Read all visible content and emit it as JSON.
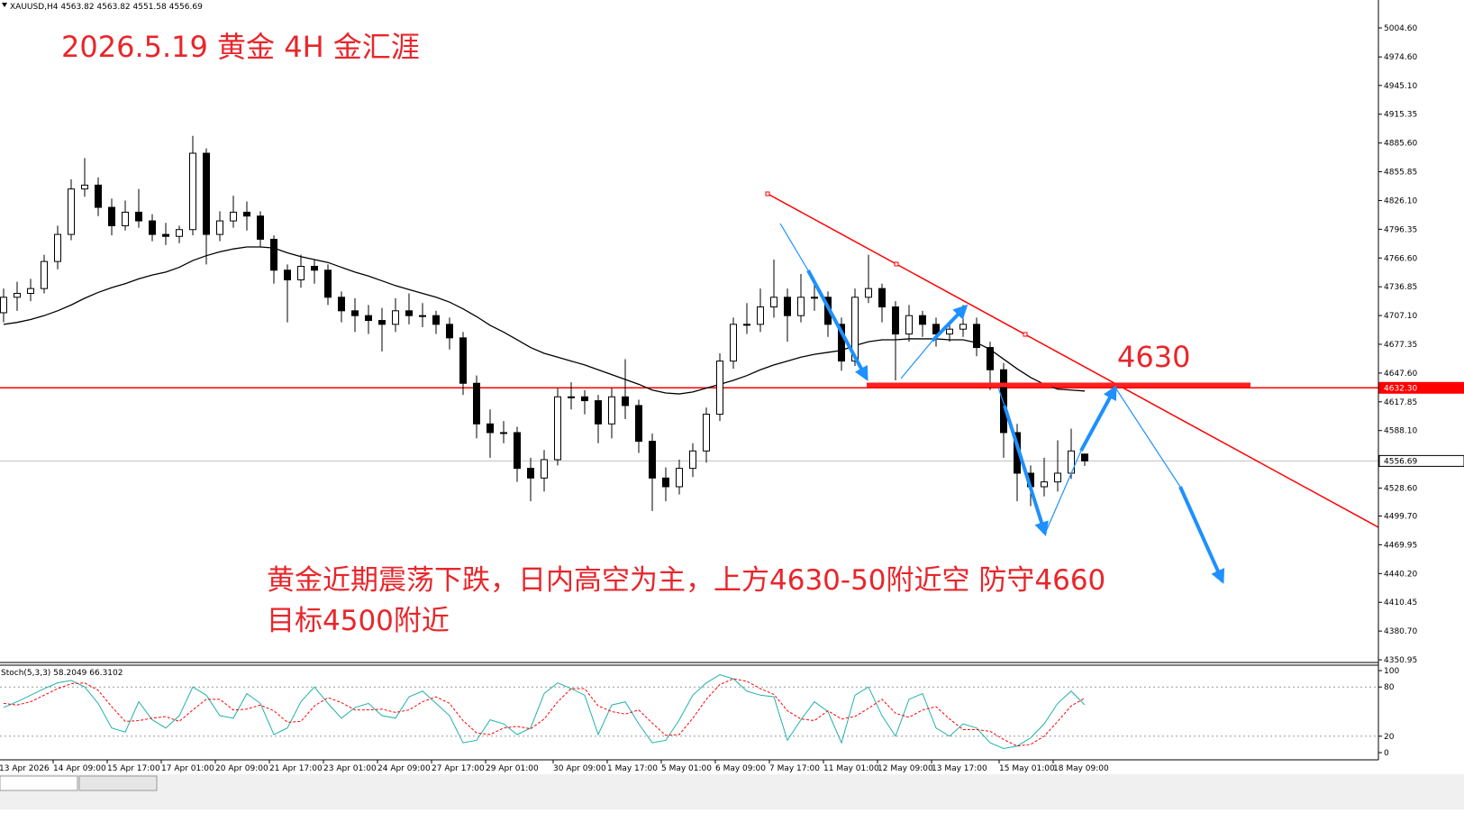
{
  "chart_data": {
    "type": "candlestick",
    "header": "XAUUSD,H4  4563.82 4563.82 4551.58 4556.69",
    "title": "2026.5.19  黄金 4H 金汇涯",
    "level_label": "4630",
    "note": [
      "黄金近期震荡下跌，日内高空为主，上方4630-50附近空 防守4660",
      "目标4500附近"
    ],
    "annotation_color": "#e8262b",
    "up_color": "#ffffff",
    "down_color": "#000000",
    "categories": [
      "13 Apr 2026",
      null,
      null,
      null,
      "14 Apr 09:00",
      null,
      null,
      null,
      "15 Apr 17:00",
      null,
      null,
      null,
      "17 Apr 01:00",
      null,
      null,
      null,
      "20 Apr 09:00",
      null,
      null,
      null,
      "21 Apr 17:00",
      null,
      null,
      null,
      "23 Apr 01:00",
      null,
      null,
      null,
      "24 Apr 09:00",
      null,
      null,
      null,
      "27 Apr 17:00",
      null,
      null,
      null,
      "29 Apr 01:00",
      null,
      null,
      null,
      null,
      "30 Apr 09:00",
      null,
      null,
      null,
      "1 May 17:00",
      null,
      null,
      null,
      "5 May 01:00",
      null,
      null,
      null,
      "6 May 09:00",
      null,
      null,
      null,
      "7 May 17:00",
      null,
      null,
      null,
      "11 May 01:00",
      null,
      null,
      null,
      "12 May 09:00",
      null,
      null,
      null,
      "13 May 17:00",
      null,
      null,
      null,
      null,
      "15 May 01:00",
      null,
      null,
      null,
      "18 May 09:00",
      null,
      null
    ],
    "open": [
      4710,
      4726,
      4730,
      4735,
      4763,
      4791,
      4838,
      4842,
      4819,
      4800,
      4814,
      4805,
      4791,
      4789,
      4796,
      4875,
      4791,
      4805,
      4814,
      4810,
      4786,
      4754,
      4744,
      4758,
      4754,
      4726,
      4712,
      4707,
      4702,
      4698,
      4712,
      4707,
      4707,
      4698,
      4684,
      4637,
      4595,
      4586,
      4586,
      4549,
      4539,
      4558,
      4623,
      4623,
      4619,
      4595,
      4623,
      4614,
      4577,
      4539,
      4530,
      4549,
      4567,
      4605,
      4660,
      4698,
      4698,
      4716,
      4726,
      4707,
      4726,
      4726,
      4698,
      4660,
      4726,
      4735,
      4716,
      4688,
      4707,
      4698,
      4688,
      4693,
      4698,
      4674,
      4651,
      4586,
      4544,
      4530,
      4535,
      4544,
      4563.82
    ],
    "high": [
      4735,
      4742,
      4745,
      4770,
      4800,
      4848,
      4870,
      4850,
      4828,
      4826,
      4838,
      4812,
      4803,
      4800,
      4893,
      4880,
      4815,
      4831,
      4825,
      4815,
      4790,
      4760,
      4770,
      4765,
      4760,
      4732,
      4725,
      4718,
      4715,
      4725,
      4730,
      4720,
      4712,
      4705,
      4690,
      4645,
      4610,
      4598,
      4592,
      4560,
      4568,
      4632,
      4638,
      4630,
      4625,
      4632,
      4662,
      4620,
      4585,
      4550,
      4558,
      4575,
      4612,
      4668,
      4705,
      4720,
      4735,
      4765,
      4735,
      4750,
      4740,
      4732,
      4705,
      4735,
      4770,
      4740,
      4722,
      4718,
      4712,
      4705,
      4700,
      4718,
      4705,
      4680,
      4658,
      4595,
      4552,
      4560,
      4578,
      4590,
      4563.82
    ],
    "low": [
      4700,
      4712,
      4722,
      4730,
      4755,
      4785,
      4830,
      4810,
      4790,
      4795,
      4798,
      4784,
      4780,
      4782,
      4790,
      4760,
      4784,
      4798,
      4795,
      4778,
      4740,
      4700,
      4736,
      4740,
      4718,
      4700,
      4690,
      4688,
      4670,
      4690,
      4698,
      4695,
      4688,
      4672,
      4625,
      4580,
      4560,
      4575,
      4535,
      4515,
      4525,
      4552,
      4610,
      4605,
      4575,
      4580,
      4600,
      4565,
      4505,
      4515,
      4522,
      4540,
      4555,
      4598,
      4652,
      4688,
      4690,
      4705,
      4680,
      4700,
      4712,
      4685,
      4650,
      4655,
      4720,
      4700,
      4640,
      4680,
      4685,
      4675,
      4680,
      4685,
      4665,
      4630,
      4560,
      4515,
      4510,
      4520,
      4525,
      4538,
      4551.58
    ],
    "close": [
      4726,
      4730,
      4735,
      4763,
      4791,
      4838,
      4842,
      4819,
      4800,
      4814,
      4805,
      4791,
      4789,
      4796,
      4875,
      4791,
      4805,
      4814,
      4810,
      4786,
      4754,
      4744,
      4758,
      4754,
      4726,
      4712,
      4707,
      4702,
      4698,
      4712,
      4707,
      4707,
      4698,
      4684,
      4637,
      4595,
      4586,
      4586,
      4549,
      4539,
      4558,
      4623,
      4623,
      4619,
      4595,
      4623,
      4614,
      4577,
      4539,
      4530,
      4549,
      4567,
      4605,
      4660,
      4698,
      4698,
      4716,
      4726,
      4707,
      4726,
      4726,
      4698,
      4660,
      4726,
      4735,
      4716,
      4688,
      4707,
      4698,
      4688,
      4693,
      4698,
      4674,
      4651,
      4586,
      4544,
      4530,
      4535,
      4544,
      4567,
      4556.69
    ],
    "ma": {
      "color": "#000000",
      "values": [
        4698,
        4700,
        4703,
        4707,
        4712,
        4718,
        4725,
        4731,
        4736,
        4740,
        4745,
        4749,
        4752,
        4757,
        4764,
        4769,
        4773,
        4776,
        4778,
        4778,
        4777,
        4772,
        4768,
        4765,
        4762,
        4757,
        4752,
        4748,
        4743,
        4738,
        4734,
        4730,
        4726,
        4721,
        4714,
        4706,
        4697,
        4690,
        4682,
        4674,
        4668,
        4664,
        4660,
        4656,
        4651,
        4646,
        4641,
        4636,
        4630,
        4627,
        4626,
        4628,
        4632,
        4636,
        4640,
        4645,
        4651,
        4656,
        4660,
        4664,
        4667,
        4669,
        4671,
        4676,
        4680,
        4682,
        4682,
        4683,
        4683,
        4683,
        4682,
        4682,
        4679,
        4672,
        4662,
        4652,
        4643,
        4636,
        4631,
        4630,
        4629
      ]
    },
    "ylim": [
      4348.2,
      5033.5
    ],
    "yticks": [
      {
        "value": 5004.6,
        "label": "5004.60"
      },
      {
        "value": 4974.6,
        "label": "4974.60"
      },
      {
        "value": 4945.1,
        "label": "4945.10"
      },
      {
        "value": 4915.35,
        "label": "4915.35"
      },
      {
        "value": 4885.6,
        "label": "4885.60"
      },
      {
        "value": 4855.85,
        "label": "4855.85"
      },
      {
        "value": 4826.1,
        "label": "4826.10"
      },
      {
        "value": 4796.35,
        "label": "4796.35"
      },
      {
        "value": 4766.6,
        "label": "4766.60"
      },
      {
        "value": 4736.85,
        "label": "4736.85"
      },
      {
        "value": 4707.1,
        "label": "4707.10"
      },
      {
        "value": 4677.35,
        "label": "4677.35"
      },
      {
        "value": 4647.6,
        "label": "4647.60"
      },
      {
        "value": 4617.85,
        "label": "4617.85"
      },
      {
        "value": 4588.1,
        "label": "4588.10"
      },
      {
        "value": 4528.6,
        "label": "4528.60"
      },
      {
        "value": 4499.7,
        "label": "4499.70"
      },
      {
        "value": 4469.95,
        "label": "4469.95"
      },
      {
        "value": 4440.2,
        "label": "4440.20"
      },
      {
        "value": 4410.45,
        "label": "4410.45"
      },
      {
        "value": 4380.7,
        "label": "4380.70"
      },
      {
        "value": 4350.95,
        "label": "4350.95"
      }
    ],
    "hlines": [
      {
        "value": 4632.3,
        "label": "4632.30",
        "color": "#ff0000"
      },
      {
        "value": 4556.69,
        "label": "4556.69",
        "color": "#c0c0c0"
      }
    ],
    "stochastic": {
      "label": "Stoch(5,3,3) 58.2049 66.3102",
      "ylim": [
        0,
        100
      ],
      "yticks": [
        100,
        80,
        20,
        0
      ],
      "levels": [
        80,
        20
      ],
      "series": [
        {
          "color": "#20b2aa",
          "values": [
            55,
            62,
            70,
            78,
            85,
            88,
            80,
            60,
            30,
            25,
            62,
            40,
            30,
            45,
            80,
            70,
            45,
            42,
            72,
            60,
            22,
            30,
            62,
            80,
            60,
            42,
            55,
            60,
            45,
            42,
            68,
            75,
            60,
            45,
            12,
            15,
            40,
            35,
            22,
            30,
            72,
            85,
            78,
            70,
            22,
            58,
            62,
            35,
            12,
            15,
            40,
            70,
            85,
            95,
            90,
            75,
            70,
            68,
            15,
            40,
            62,
            50,
            12,
            70,
            80,
            45,
            20,
            65,
            72,
            30,
            20,
            35,
            30,
            12,
            5,
            8,
            18,
            35,
            60,
            75,
            58.2049
          ]
        },
        {
          "color": "#ff0000",
          "values": [
            60,
            58,
            62,
            70,
            78,
            84,
            85,
            76,
            56,
            38,
            39,
            42,
            44,
            38,
            52,
            65,
            65,
            52,
            53,
            58,
            51,
            37,
            38,
            57,
            67,
            61,
            52,
            52,
            53,
            49,
            52,
            62,
            68,
            60,
            39,
            24,
            22,
            30,
            32,
            29,
            41,
            62,
            78,
            78,
            57,
            50,
            47,
            52,
            36,
            21,
            22,
            42,
            65,
            83,
            90,
            87,
            78,
            71,
            51,
            41,
            39,
            51,
            41,
            44,
            54,
            65,
            48,
            43,
            52,
            56,
            41,
            28,
            28,
            26,
            16,
            8,
            10,
            20,
            38,
            57,
            66.3102
          ]
        }
      ]
    }
  }
}
